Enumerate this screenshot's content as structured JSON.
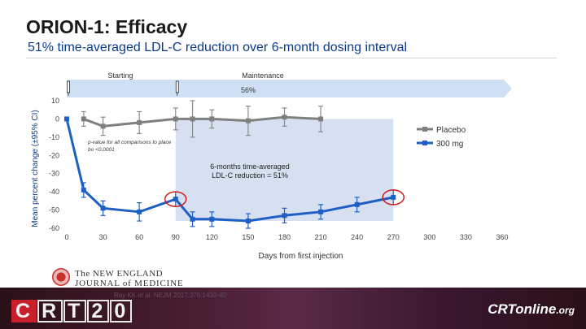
{
  "slide": {
    "title": "ORION-1: Efficacy",
    "subtitle": "51% time-averaged LDL-C reduction over 6-month dosing interval"
  },
  "chart_data": {
    "type": "line",
    "xlabel": "Days from first injection",
    "ylabel": "Mean percent change (±95% CI)",
    "xlim": [
      0,
      360
    ],
    "ylim": [
      -60,
      10
    ],
    "x_ticks": [
      0,
      30,
      60,
      90,
      120,
      150,
      180,
      210,
      240,
      270,
      300,
      330,
      360
    ],
    "y_ticks": [
      10,
      0,
      -10,
      -20,
      -30,
      -40,
      -50,
      -60
    ],
    "series": [
      {
        "name": "Placebo",
        "color": "#7f7f7f",
        "x": [
          14,
          30,
          60,
          90,
          104,
          120,
          150,
          180,
          210
        ],
        "y": [
          0,
          -4,
          -2,
          0,
          0,
          0,
          -1,
          1,
          0
        ],
        "err": [
          4,
          5,
          6,
          6,
          10,
          5,
          8,
          5,
          7
        ]
      },
      {
        "name": "300 mg",
        "color": "#1f5fc4",
        "x": [
          0,
          14,
          30,
          60,
          90,
          104,
          120,
          150,
          180,
          210,
          240,
          270
        ],
        "y": [
          0,
          -39,
          -49,
          -51,
          -44,
          -55,
          -55,
          -56,
          -53,
          -51,
          -47,
          -43
        ],
        "err": [
          0,
          4,
          4,
          5,
          4,
          4,
          4,
          4,
          4,
          4,
          4,
          4
        ]
      }
    ],
    "legend_position": "right",
    "annotations": {
      "pvalue": "p-value for all comparisons to placebo <0.0001",
      "time_averaged": "6-months time-averaged",
      "time_averaged_line2": "LDL-C reduction = 51%",
      "phase_starting": "Starting",
      "phase_maintenance": "Maintenance",
      "arrow_pct": "56%"
    },
    "shaded_region": {
      "x": [
        90,
        270
      ],
      "y_top": 0,
      "y_bottom": -56,
      "color": "#d6e0f0"
    },
    "circled_points_x": [
      90,
      270
    ],
    "injection_days": [
      0,
      90
    ]
  },
  "journal": {
    "line1": "The NEW ENGLAND",
    "line2": "JOURNAL of MEDICINE"
  },
  "footer": {
    "citation": "Ray KK et al. NEJM 2017;376:1430-40",
    "crt_logo": [
      "C",
      "R",
      "T",
      "2",
      "0"
    ],
    "crtonline": "CRTonline",
    "crtonline_suffix": ".org"
  },
  "colors": {
    "accent_blue": "#1f5fc4",
    "placebo_gray": "#7f7f7f",
    "circle_red": "#d21c1c",
    "subtitle_blue": "#0a3a8c"
  }
}
